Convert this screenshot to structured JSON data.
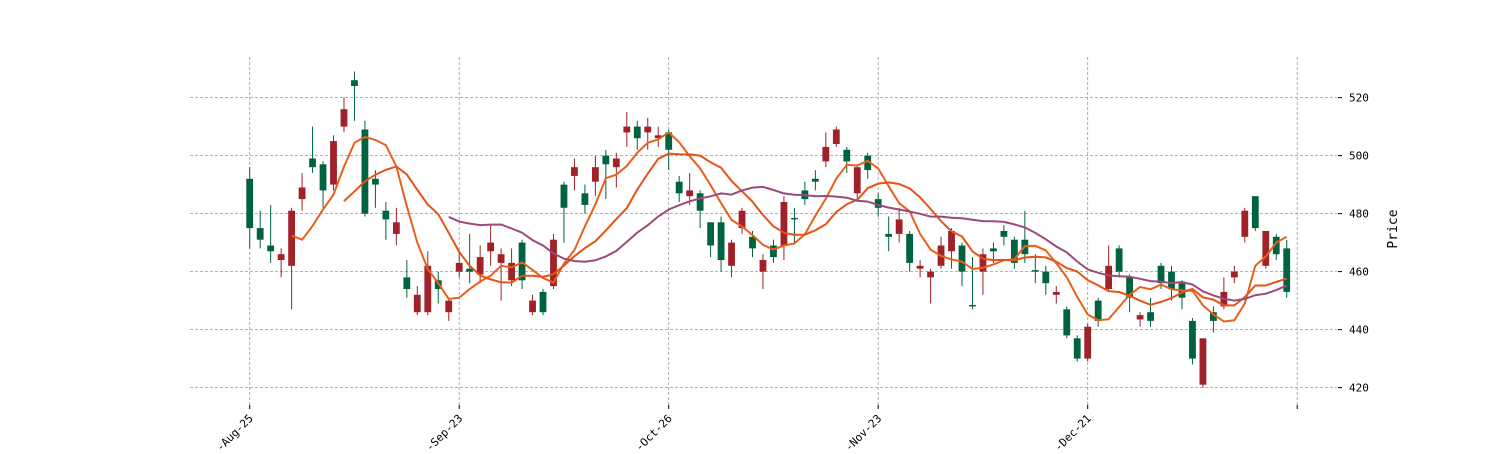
{
  "chart_data": {
    "type": "candlestick",
    "ylabel": "Price",
    "up_color": "#006340",
    "down_color": "#a02128",
    "mav": [
      5,
      10,
      20
    ],
    "mav_colors": [
      "#e8601c",
      "#e5531a",
      "#9b4a7c"
    ],
    "grid": true,
    "xlim": [
      -5.7,
      103.8
    ],
    "xticks": [
      {
        "value": 0,
        "label": "-Aug-25"
      },
      {
        "value": 20,
        "label": "-Sep-23"
      },
      {
        "value": 40,
        "label": "-Oct-26"
      },
      {
        "value": 60,
        "label": "-Nov-23"
      },
      {
        "value": 80,
        "label": "-Dec-21"
      },
      {
        "value": 100,
        "label": null
      }
    ],
    "ylim": [
      414,
      534
    ],
    "yticks": [
      420,
      440,
      460,
      480,
      500,
      520
    ],
    "open": [
      475,
      471,
      467,
      466,
      481,
      489,
      496,
      488,
      505,
      516,
      524,
      480,
      490,
      478,
      477,
      454,
      452,
      462,
      454,
      450,
      463,
      460,
      465,
      470,
      466,
      463,
      457,
      450,
      446,
      471,
      482,
      496,
      483,
      496,
      497,
      499,
      510,
      506,
      510,
      507,
      502,
      487,
      488,
      481,
      469,
      464,
      470,
      481,
      468,
      464,
      465,
      484,
      478,
      485,
      491,
      503,
      509,
      498,
      496,
      495,
      482,
      472,
      478,
      463,
      462,
      460,
      469,
      474,
      460,
      448,
      466,
      467,
      472,
      463,
      466,
      460,
      456,
      453,
      438,
      430,
      441,
      443,
      462,
      460,
      451,
      445,
      443,
      456,
      454,
      451,
      430,
      437,
      443,
      453,
      460,
      481,
      475,
      474,
      466,
      453
    ],
    "high": [
      496,
      481,
      483,
      468,
      482,
      494,
      510,
      498,
      507,
      520,
      529,
      512,
      495,
      484,
      482,
      464,
      455,
      467,
      460,
      451,
      467,
      473,
      469,
      476,
      468,
      468,
      471,
      452,
      454,
      473,
      491,
      499,
      490,
      500,
      502,
      501,
      515,
      512,
      513,
      510,
      509,
      493,
      494,
      488,
      477,
      479,
      471,
      482,
      474,
      466,
      471,
      486,
      482,
      491,
      495,
      508,
      510,
      503,
      497,
      501,
      487,
      479,
      482,
      474,
      464,
      461,
      472,
      475,
      470,
      465,
      468,
      470,
      476,
      472,
      481,
      466,
      462,
      455,
      448,
      438,
      442,
      451,
      469,
      469,
      459,
      446,
      451,
      463,
      462,
      457,
      444,
      437,
      448,
      458,
      462,
      482,
      486,
      474,
      473,
      471
    ],
    "low": [
      468,
      468,
      463,
      458,
      447,
      481,
      494,
      482,
      488,
      508,
      512,
      479,
      482,
      471,
      469,
      451,
      445,
      445,
      449,
      443,
      458,
      456,
      456,
      462,
      450,
      455,
      454,
      445,
      445,
      454,
      470,
      488,
      480,
      486,
      485,
      489,
      503,
      502,
      502,
      503,
      495,
      484,
      483,
      475,
      465,
      460,
      458,
      473,
      465,
      454,
      463,
      464,
      470,
      483,
      488,
      496,
      503,
      494,
      484,
      492,
      479,
      467,
      470,
      460,
      458,
      449,
      461,
      461,
      455,
      447,
      452,
      463,
      469,
      461,
      463,
      456,
      452,
      449,
      437,
      429,
      429,
      441,
      453,
      458,
      446,
      441,
      441,
      454,
      450,
      447,
      428,
      420,
      439,
      447,
      456,
      470,
      474,
      461,
      464,
      451
    ],
    "close": [
      492,
      475,
      469,
      464,
      462,
      485,
      499,
      497,
      490,
      510,
      526,
      509,
      492,
      481,
      473,
      458,
      446,
      446,
      457,
      446,
      460,
      461,
      459,
      467,
      463,
      457,
      470,
      446,
      453,
      455,
      490,
      493,
      487,
      491,
      500,
      496,
      508,
      510,
      508,
      506,
      508,
      491,
      486,
      487,
      477,
      477,
      462,
      475,
      472,
      460,
      469,
      469,
      478.5,
      488,
      492,
      498,
      504,
      502,
      487,
      500,
      485,
      473,
      473,
      473,
      461,
      458,
      462,
      467,
      469,
      448.5,
      460,
      468,
      474,
      471,
      471,
      460.5,
      460,
      452,
      447,
      437,
      430,
      450,
      454,
      468,
      458,
      443.5,
      446,
      462,
      460,
      456,
      443,
      421,
      446,
      448,
      458,
      472,
      486,
      462,
      472,
      468
    ]
  }
}
